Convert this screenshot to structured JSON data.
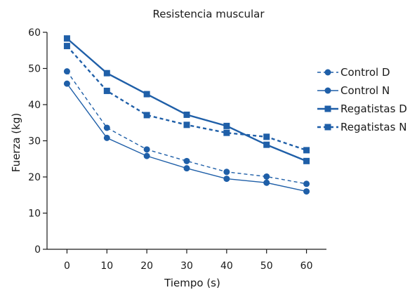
{
  "chart_data": {
    "type": "line",
    "title": "Resistencia muscular",
    "xlabel": "Tiempo (s)",
    "ylabel": "Fuerza (kg)",
    "x": [
      0,
      10,
      20,
      30,
      40,
      50,
      60
    ],
    "xlim": [
      -5,
      65
    ],
    "ylim": [
      0,
      60
    ],
    "yticks": [
      0,
      10,
      20,
      30,
      40,
      50,
      60
    ],
    "grid": false,
    "legend_position": "right",
    "series": [
      {
        "name": "Control D",
        "values": [
          49.2,
          33.6,
          27.6,
          24.4,
          21.4,
          20.1,
          18.1
        ],
        "color": "#1f5fa8",
        "line_style": "dashed",
        "line_weight": "thin",
        "marker": "circle"
      },
      {
        "name": "Control N",
        "values": [
          45.8,
          30.8,
          25.8,
          22.4,
          19.5,
          18.4,
          16.0
        ],
        "color": "#1f5fa8",
        "line_style": "solid",
        "line_weight": "thin",
        "marker": "circle"
      },
      {
        "name": "Regatistas D",
        "values": [
          58.3,
          48.7,
          42.9,
          37.2,
          34.1,
          28.9,
          24.4
        ],
        "color": "#1f5fa8",
        "line_style": "solid",
        "line_weight": "thick",
        "marker": "square"
      },
      {
        "name": "Regatistas N",
        "values": [
          56.2,
          43.8,
          37.1,
          34.4,
          32.2,
          31.1,
          27.4
        ],
        "color": "#1f5fa8",
        "line_style": "dashed",
        "line_weight": "thick",
        "marker": "square"
      }
    ]
  }
}
